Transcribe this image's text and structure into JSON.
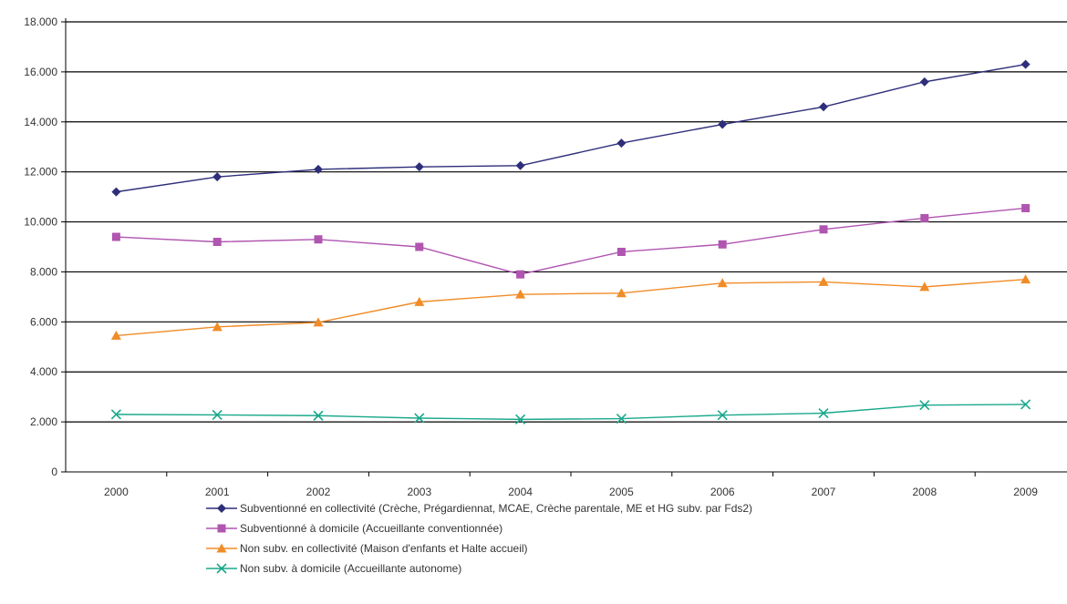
{
  "chart_data": {
    "type": "line",
    "title": "",
    "xlabel": "",
    "ylabel": "",
    "categories": [
      "2000",
      "2001",
      "2002",
      "2003",
      "2004",
      "2005",
      "2006",
      "2007",
      "2008",
      "2009"
    ],
    "y_ticks": [
      "0",
      "2.000",
      "4.000",
      "6.000",
      "8.000",
      "10.000",
      "12.000",
      "14.000",
      "16.000",
      "18.000"
    ],
    "ylim": [
      0,
      18000
    ],
    "grid": true,
    "legend_position": "bottom",
    "series": [
      {
        "name": "Subventionné en collectivité (Crèche, Prégardiennat, MCAE, Crèche parentale, ME et HG subv. par Fds2)",
        "color": "#2e2e7a",
        "marker": "diamond",
        "values": [
          11200,
          11800,
          12100,
          12200,
          12250,
          13150,
          13900,
          14600,
          15600,
          16300
        ]
      },
      {
        "name": "Subventionné à domicile (Accueillante conventionnée)",
        "color": "#b055b0",
        "marker": "square",
        "values": [
          9400,
          9200,
          9300,
          9000,
          7900,
          8800,
          9100,
          9700,
          10150,
          10550
        ]
      },
      {
        "name": "Non subv. en collectivité (Maison d'enfants et Halte accueil)",
        "color": "#f08c28",
        "marker": "triangle",
        "values": [
          5450,
          5800,
          5980,
          6800,
          7100,
          7150,
          7550,
          7600,
          7400,
          7700
        ]
      },
      {
        "name": "Non subv. à domicile (Accueillante autonome)",
        "color": "#1aa88c",
        "marker": "x",
        "values": [
          2300,
          2280,
          2250,
          2150,
          2100,
          2130,
          2270,
          2350,
          2670,
          2700
        ]
      }
    ]
  }
}
